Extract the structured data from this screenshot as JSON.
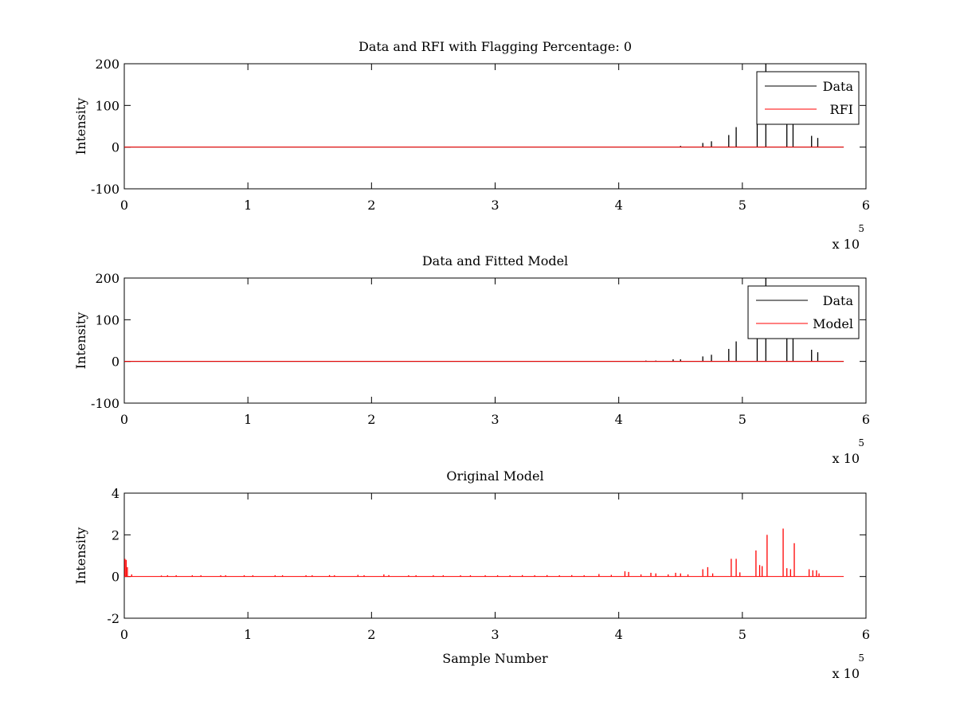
{
  "chart_data": [
    {
      "type": "line",
      "title": "Data and RFI with Flagging Percentage: 0",
      "xlabel": "",
      "ylabel": "Intensity",
      "xlim": [
        0,
        6
      ],
      "ylim": [
        -100,
        200
      ],
      "x_ticks": [
        "0",
        "1",
        "2",
        "3",
        "4",
        "5",
        "6"
      ],
      "y_ticks": [
        "-100",
        "0",
        "100",
        "200"
      ],
      "x_multiplier": {
        "base": "x 10",
        "exponent": "5"
      },
      "legend_position": "top-right",
      "legend": [
        "Data",
        "RFI"
      ],
      "colors": {
        "Data": "#000000",
        "RFI": "#ff0000"
      },
      "baseline": 0,
      "x_end": 5.82,
      "series": [
        {
          "name": "Data",
          "spikes": [
            {
              "x": 4.5,
              "y": 3
            },
            {
              "x": 4.68,
              "y": 10
            },
            {
              "x": 4.75,
              "y": 14
            },
            {
              "x": 4.89,
              "y": 29
            },
            {
              "x": 4.95,
              "y": 48
            },
            {
              "x": 5.12,
              "y": 120
            },
            {
              "x": 5.19,
              "y": 200
            },
            {
              "x": 5.36,
              "y": 130
            },
            {
              "x": 5.41,
              "y": 180
            },
            {
              "x": 5.56,
              "y": 27
            },
            {
              "x": 5.61,
              "y": 22
            }
          ]
        },
        {
          "name": "RFI",
          "spikes": [
            {
              "x": 3.13,
              "y": 0.5
            }
          ]
        }
      ]
    },
    {
      "type": "line",
      "title": "Data and Fitted Model",
      "xlabel": "",
      "ylabel": "Intensity",
      "xlim": [
        0,
        6
      ],
      "ylim": [
        -100,
        200
      ],
      "x_ticks": [
        "0",
        "1",
        "2",
        "3",
        "4",
        "5",
        "6"
      ],
      "y_ticks": [
        "-100",
        "0",
        "100",
        "200"
      ],
      "x_multiplier": {
        "base": "x 10",
        "exponent": "5"
      },
      "legend_position": "top-right",
      "legend": [
        "Data",
        "Model"
      ],
      "colors": {
        "Data": "#000000",
        "Model": "#ff0000"
      },
      "baseline": 0,
      "x_end": 5.82,
      "series": [
        {
          "name": "Data",
          "spikes": [
            {
              "x": 4.22,
              "y": 2
            },
            {
              "x": 4.3,
              "y": 2
            },
            {
              "x": 4.44,
              "y": 5
            },
            {
              "x": 4.5,
              "y": 5
            },
            {
              "x": 4.68,
              "y": 12
            },
            {
              "x": 4.75,
              "y": 16
            },
            {
              "x": 4.89,
              "y": 30
            },
            {
              "x": 4.95,
              "y": 48
            },
            {
              "x": 5.12,
              "y": 120
            },
            {
              "x": 5.19,
              "y": 200
            },
            {
              "x": 5.36,
              "y": 130
            },
            {
              "x": 5.41,
              "y": 180
            },
            {
              "x": 5.56,
              "y": 28
            },
            {
              "x": 5.61,
              "y": 22
            }
          ]
        },
        {
          "name": "Model",
          "spikes": []
        }
      ]
    },
    {
      "type": "line",
      "title": "Original Model",
      "xlabel": "Sample Number",
      "ylabel": "Intensity",
      "xlim": [
        0,
        6
      ],
      "ylim": [
        -2,
        4
      ],
      "x_ticks": [
        "0",
        "1",
        "2",
        "3",
        "4",
        "5",
        "6"
      ],
      "y_ticks": [
        "-2",
        "0",
        "2",
        "4"
      ],
      "x_multiplier": {
        "base": "x 10",
        "exponent": "5"
      },
      "legend_position": "none",
      "legend": [],
      "colors": {
        "Original Model": "#ff0000"
      },
      "baseline": 0,
      "x_end": 5.82,
      "series": [
        {
          "name": "",
          "spikes": [
            {
              "x": 0.005,
              "y": 0.85
            },
            {
              "x": 0.015,
              "y": 0.8
            },
            {
              "x": 0.025,
              "y": 0.45
            },
            {
              "x": 0.06,
              "y": 0.1
            },
            {
              "x": 0.3,
              "y": 0.05
            },
            {
              "x": 0.35,
              "y": 0.06
            },
            {
              "x": 0.42,
              "y": 0.06
            },
            {
              "x": 0.55,
              "y": 0.06
            },
            {
              "x": 0.62,
              "y": 0.06
            },
            {
              "x": 0.78,
              "y": 0.06
            },
            {
              "x": 0.82,
              "y": 0.06
            },
            {
              "x": 0.97,
              "y": 0.06
            },
            {
              "x": 1.04,
              "y": 0.06
            },
            {
              "x": 1.22,
              "y": 0.06
            },
            {
              "x": 1.28,
              "y": 0.06
            },
            {
              "x": 1.47,
              "y": 0.06
            },
            {
              "x": 1.52,
              "y": 0.06
            },
            {
              "x": 1.66,
              "y": 0.07
            },
            {
              "x": 1.7,
              "y": 0.06
            },
            {
              "x": 1.89,
              "y": 0.08
            },
            {
              "x": 1.94,
              "y": 0.06
            },
            {
              "x": 2.1,
              "y": 0.1
            },
            {
              "x": 2.14,
              "y": 0.07
            },
            {
              "x": 2.3,
              "y": 0.06
            },
            {
              "x": 2.36,
              "y": 0.06
            },
            {
              "x": 2.5,
              "y": 0.06
            },
            {
              "x": 2.58,
              "y": 0.06
            },
            {
              "x": 2.72,
              "y": 0.06
            },
            {
              "x": 2.8,
              "y": 0.06
            },
            {
              "x": 2.92,
              "y": 0.06
            },
            {
              "x": 3.02,
              "y": 0.06
            },
            {
              "x": 3.12,
              "y": 0.06
            },
            {
              "x": 3.22,
              "y": 0.07
            },
            {
              "x": 3.32,
              "y": 0.06
            },
            {
              "x": 3.42,
              "y": 0.07
            },
            {
              "x": 3.52,
              "y": 0.06
            },
            {
              "x": 3.62,
              "y": 0.07
            },
            {
              "x": 3.72,
              "y": 0.06
            },
            {
              "x": 3.84,
              "y": 0.12
            },
            {
              "x": 3.94,
              "y": 0.08
            },
            {
              "x": 4.05,
              "y": 0.25
            },
            {
              "x": 4.08,
              "y": 0.22
            },
            {
              "x": 4.18,
              "y": 0.1
            },
            {
              "x": 4.26,
              "y": 0.18
            },
            {
              "x": 4.3,
              "y": 0.15
            },
            {
              "x": 4.4,
              "y": 0.1
            },
            {
              "x": 4.46,
              "y": 0.18
            },
            {
              "x": 4.5,
              "y": 0.15
            },
            {
              "x": 4.56,
              "y": 0.1
            },
            {
              "x": 4.68,
              "y": 0.35
            },
            {
              "x": 4.72,
              "y": 0.45
            },
            {
              "x": 4.76,
              "y": 0.15
            },
            {
              "x": 4.91,
              "y": 0.85
            },
            {
              "x": 4.95,
              "y": 0.85
            },
            {
              "x": 4.98,
              "y": 0.2
            },
            {
              "x": 5.11,
              "y": 1.25
            },
            {
              "x": 5.14,
              "y": 0.55
            },
            {
              "x": 5.16,
              "y": 0.5
            },
            {
              "x": 5.2,
              "y": 2.0
            },
            {
              "x": 5.33,
              "y": 2.3
            },
            {
              "x": 5.36,
              "y": 0.4
            },
            {
              "x": 5.39,
              "y": 0.35
            },
            {
              "x": 5.42,
              "y": 1.6
            },
            {
              "x": 5.54,
              "y": 0.35
            },
            {
              "x": 5.57,
              "y": 0.3
            },
            {
              "x": 5.6,
              "y": 0.3
            },
            {
              "x": 5.62,
              "y": 0.15
            }
          ]
        }
      ]
    }
  ]
}
